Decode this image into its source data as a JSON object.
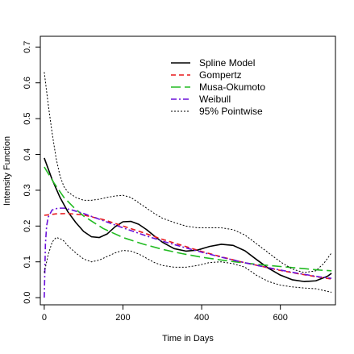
{
  "chart_data": {
    "type": "line",
    "title": "",
    "xlabel": "Time in Days",
    "ylabel": "Intensity Function",
    "xlim": [
      -10,
      740
    ],
    "ylim": [
      -0.02,
      0.73
    ],
    "xticks": [
      0,
      200,
      400,
      600
    ],
    "yticks": [
      0.0,
      0.1,
      0.2,
      0.3,
      0.4,
      0.5,
      0.6,
      0.7
    ],
    "legend": "top-right",
    "series": [
      {
        "name": "Spline Model",
        "color": "#000000",
        "dash": "solid",
        "x": [
          0,
          20,
          40,
          60,
          80,
          100,
          120,
          140,
          160,
          180,
          200,
          220,
          240,
          260,
          280,
          300,
          330,
          360,
          390,
          420,
          450,
          480,
          510,
          540,
          570,
          600,
          630,
          660,
          690,
          720,
          730
        ],
        "y": [
          0.39,
          0.33,
          0.28,
          0.24,
          0.21,
          0.185,
          0.17,
          0.168,
          0.178,
          0.198,
          0.212,
          0.213,
          0.205,
          0.19,
          0.172,
          0.155,
          0.137,
          0.13,
          0.133,
          0.143,
          0.149,
          0.146,
          0.131,
          0.106,
          0.082,
          0.063,
          0.05,
          0.045,
          0.047,
          0.06,
          0.068
        ]
      },
      {
        "name": "Gompertz",
        "color": "#e8191c",
        "dash": "6,4",
        "x": [
          0,
          30,
          60,
          100,
          150,
          200,
          250,
          300,
          350,
          400,
          450,
          500,
          550,
          600,
          650,
          700,
          730
        ],
        "y": [
          0.23,
          0.234,
          0.235,
          0.231,
          0.218,
          0.2,
          0.182,
          0.163,
          0.146,
          0.129,
          0.114,
          0.1,
          0.088,
          0.076,
          0.066,
          0.057,
          0.052
        ]
      },
      {
        "name": "Musa-Okumoto",
        "color": "#22bb22",
        "dash": "12,5",
        "x": [
          0,
          25,
          50,
          75,
          100,
          150,
          200,
          250,
          300,
          350,
          400,
          450,
          500,
          550,
          600,
          650,
          700,
          730
        ],
        "y": [
          0.365,
          0.32,
          0.28,
          0.252,
          0.228,
          0.193,
          0.168,
          0.15,
          0.135,
          0.123,
          0.113,
          0.105,
          0.098,
          0.092,
          0.087,
          0.082,
          0.077,
          0.075
        ]
      },
      {
        "name": "Weibull",
        "color": "#6a11d9",
        "dash": "7,3,2,3",
        "x": [
          0,
          3,
          6,
          10,
          20,
          35,
          50,
          70,
          100,
          150,
          200,
          250,
          300,
          350,
          400,
          450,
          500,
          550,
          600,
          650,
          700,
          730
        ],
        "y": [
          0.0,
          0.15,
          0.2,
          0.225,
          0.245,
          0.25,
          0.25,
          0.245,
          0.235,
          0.215,
          0.195,
          0.176,
          0.158,
          0.142,
          0.127,
          0.113,
          0.1,
          0.088,
          0.077,
          0.067,
          0.058,
          0.054
        ]
      },
      {
        "name": "95% Pointwise",
        "color": "#000000",
        "dash": "2,2",
        "x": [
          0,
          10,
          20,
          30,
          40,
          50,
          60,
          80,
          100,
          120,
          140,
          160,
          180,
          200,
          220,
          240,
          260,
          280,
          300,
          330,
          360,
          390,
          420,
          450,
          480,
          510,
          540,
          570,
          600,
          630,
          660,
          690,
          710,
          730
        ],
        "y": [
          0.63,
          0.54,
          0.46,
          0.39,
          0.34,
          0.31,
          0.295,
          0.28,
          0.272,
          0.272,
          0.275,
          0.28,
          0.284,
          0.286,
          0.28,
          0.265,
          0.25,
          0.235,
          0.222,
          0.21,
          0.2,
          0.195,
          0.195,
          0.195,
          0.19,
          0.175,
          0.15,
          0.125,
          0.1,
          0.08,
          0.07,
          0.075,
          0.095,
          0.125
        ]
      },
      {
        "name": "",
        "color": "#000000",
        "dash": "2,2",
        "x": [
          0,
          10,
          20,
          30,
          40,
          50,
          60,
          80,
          100,
          120,
          140,
          160,
          180,
          200,
          220,
          240,
          260,
          280,
          300,
          330,
          360,
          390,
          420,
          450,
          480,
          510,
          540,
          570,
          600,
          630,
          660,
          690,
          710,
          730
        ],
        "y": [
          0.07,
          0.12,
          0.155,
          0.168,
          0.165,
          0.158,
          0.145,
          0.125,
          0.108,
          0.1,
          0.105,
          0.115,
          0.125,
          0.132,
          0.13,
          0.122,
          0.11,
          0.098,
          0.09,
          0.085,
          0.085,
          0.09,
          0.098,
          0.1,
          0.095,
          0.085,
          0.062,
          0.045,
          0.035,
          0.03,
          0.027,
          0.025,
          0.02,
          0.015
        ]
      }
    ]
  }
}
